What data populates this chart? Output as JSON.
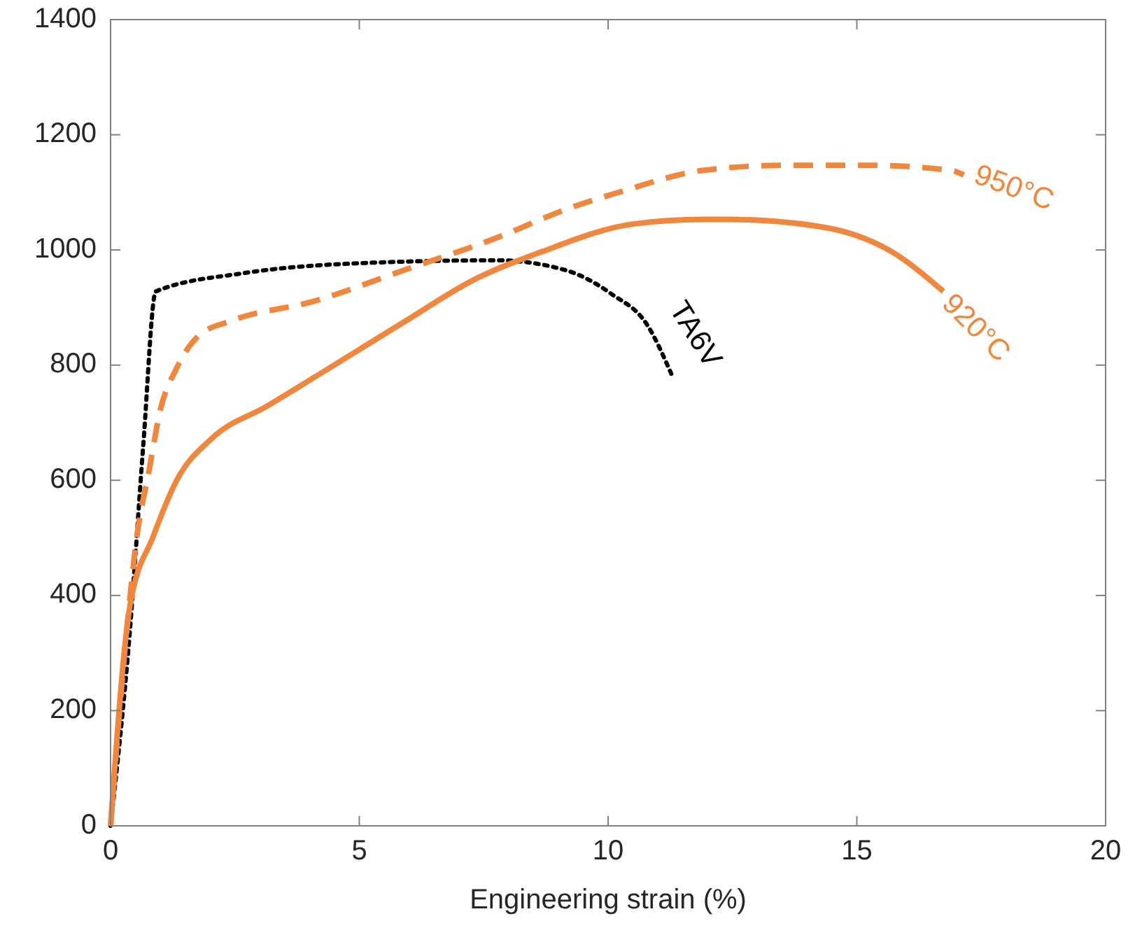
{
  "chart_data": {
    "type": "line",
    "xlabel": "Engineering strain (%)",
    "xlim": [
      0,
      20
    ],
    "xticks": [
      0,
      5,
      10,
      15,
      20
    ],
    "ylim": [
      0,
      1400
    ],
    "yticks": [
      0,
      200,
      400,
      600,
      800,
      1000,
      1200,
      1400
    ],
    "grid": false,
    "series": [
      {
        "name": "TA6V",
        "color": "#000000",
        "line_style": "dotted",
        "x": [
          0,
          0.39,
          0.66,
          0.91,
          2.7,
          5,
          7.76,
          9.14,
          10.06,
          10.8,
          11.27
        ],
        "values": [
          0,
          340,
          664,
          928,
          960,
          977,
          982,
          965,
          924,
          868,
          785
        ]
      },
      {
        "name": "950°C",
        "color": "#f0873e",
        "line_style": "dashed",
        "x": [
          0,
          0.3,
          0.53,
          0.77,
          1.0,
          1.33,
          1.77,
          2.43,
          4.09,
          5.9,
          7.76,
          9.14,
          10.25,
          11.9,
          13.56,
          15.2,
          16.9,
          17.15
        ],
        "values": [
          0,
          316,
          503,
          615,
          722,
          795,
          851,
          877,
          911,
          965,
          1021,
          1070,
          1101,
          1138,
          1147,
          1147,
          1138,
          1130
        ]
      },
      {
        "name": "920°C",
        "color": "#f0873e",
        "line_style": "solid",
        "x": [
          0,
          0.39,
          0.86,
          1.33,
          2.04,
          3.15,
          4.53,
          5.9,
          7.3,
          8.67,
          10.5,
          11.9,
          12.46,
          14.3,
          15.7,
          16.74
        ],
        "values": [
          0,
          382,
          503,
          600,
          673,
          729,
          802,
          875,
          948,
          997,
          1045,
          1053,
          1053,
          1040,
          997,
          928
        ]
      }
    ]
  }
}
